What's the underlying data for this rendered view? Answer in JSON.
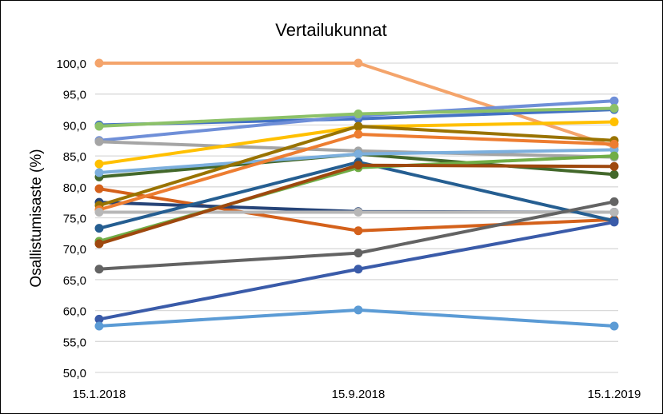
{
  "chart_data": {
    "type": "line",
    "title": "Vertailukunnat",
    "xlabel": "",
    "ylabel": "Osallistumisaste (%)",
    "ylim": [
      50,
      100
    ],
    "ytick_step": 5,
    "ytick_labels": [
      "50,0",
      "55,0",
      "60,0",
      "65,0",
      "70,0",
      "75,0",
      "80,0",
      "85,0",
      "90,0",
      "95,0",
      "100,0"
    ],
    "categories": [
      "15.1.2018",
      "15.9.2018",
      "15.1.2019"
    ],
    "grid": true,
    "legend": "none",
    "series": [
      {
        "color": "#F4A46B",
        "values": [
          100.0,
          100.0,
          86.5
        ]
      },
      {
        "color": "#4472C4",
        "values": [
          90.0,
          91.0,
          92.5
        ]
      },
      {
        "color": "#6F8FD8",
        "values": [
          87.5,
          91.5,
          93.9
        ]
      },
      {
        "color": "#8CC168",
        "values": [
          89.8,
          91.8,
          92.7
        ]
      },
      {
        "color": "#A5A5A5",
        "values": [
          87.3,
          85.8,
          84.8
        ]
      },
      {
        "color": "#FFC000",
        "values": [
          83.7,
          89.7,
          90.5
        ]
      },
      {
        "color": "#43682B",
        "values": [
          81.6,
          85.3,
          82.0
        ]
      },
      {
        "color": "#7CAFDD",
        "values": [
          82.3,
          85.3,
          86.0
        ]
      },
      {
        "color": "#D4611B",
        "values": [
          79.7,
          72.9,
          74.7
        ]
      },
      {
        "color": "#264478",
        "values": [
          77.5,
          76.0,
          75.9
        ]
      },
      {
        "color": "#997300",
        "values": [
          77.0,
          89.8,
          87.5
        ]
      },
      {
        "color": "#ED7D31",
        "values": [
          76.3,
          88.5,
          86.9
        ]
      },
      {
        "color": "#B7B7B7",
        "values": [
          75.9,
          75.9,
          75.9
        ]
      },
      {
        "color": "#255E91",
        "values": [
          73.3,
          84.0,
          74.5
        ]
      },
      {
        "color": "#70AD47",
        "values": [
          71.2,
          83.1,
          85.0
        ]
      },
      {
        "color": "#9E480E",
        "values": [
          70.8,
          83.5,
          83.3
        ]
      },
      {
        "color": "#636363",
        "values": [
          66.7,
          69.3,
          77.6
        ]
      },
      {
        "color": "#3A5BA9",
        "values": [
          58.6,
          66.7,
          74.3
        ]
      },
      {
        "color": "#5B9BD5",
        "values": [
          57.5,
          60.1,
          57.5
        ]
      }
    ]
  }
}
